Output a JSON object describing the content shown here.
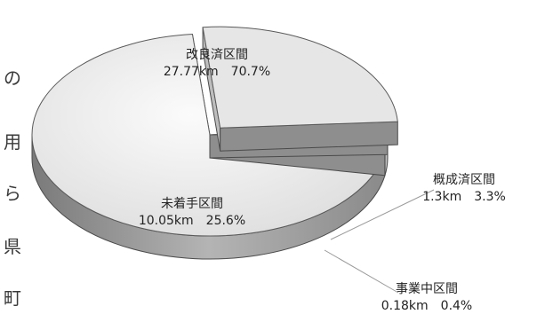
{
  "chart_data": {
    "type": "pie",
    "style": "3d-exploded",
    "title": "",
    "unit": "km",
    "slices": [
      {
        "label": "改良済区間",
        "value": 27.77,
        "percent": 70.7,
        "value_text": "27.77km",
        "percent_text": "70.7%",
        "color": "#eeeeee"
      },
      {
        "label": "未着手区間",
        "value": 10.05,
        "percent": 25.6,
        "value_text": "10.05km",
        "percent_text": "25.6%",
        "color": "#e6e6e6",
        "exploded": true
      },
      {
        "label": "事業中区間",
        "value": 0.18,
        "percent": 0.4,
        "value_text": "0.18km",
        "percent_text": "0.4%",
        "color": "#a0a0a0"
      },
      {
        "label": "概成済区間",
        "value": 1.3,
        "percent": 3.3,
        "value_text": "1.3km",
        "percent_text": "3.3%",
        "color": "#d2d2d2"
      }
    ]
  },
  "edge_glyphs": [
    "の",
    "用",
    "ら",
    "県",
    "町"
  ]
}
